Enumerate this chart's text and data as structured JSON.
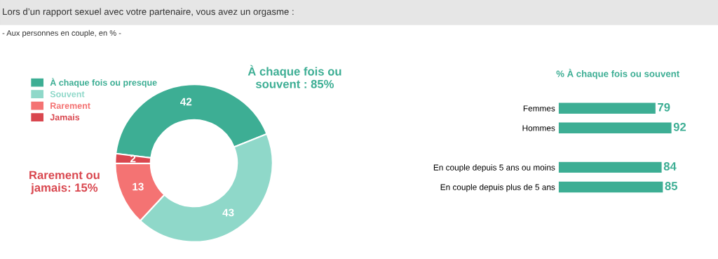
{
  "chart_data": [
    {
      "type": "donut",
      "title": "Lors d’un rapport sexuel avec votre partenaire, vous avez un orgasme :",
      "subtitle": "- Aux personnes en couple, en % -",
      "categories": [
        "À chaque fois ou presque",
        "Souvent",
        "Rarement",
        "Jamais"
      ],
      "values": [
        42,
        43,
        13,
        2
      ],
      "colors": [
        "#3dae94",
        "#8fd8c9",
        "#f47373",
        "#d9474f"
      ],
      "data_labels": true,
      "legend": "top left",
      "annotations": [
        "À chaque fois ou\nsouvent : 85%",
        "Rarement ou\njamais: 15%"
      ]
    },
    {
      "type": "bar",
      "orientation": "horizontal",
      "title": "% À chaque fois ou souvent",
      "categories": [
        "Femmes",
        "Hommes",
        null,
        "En couple depuis 5 ans ou moins",
        "En couple depuis plus de 5 ans"
      ],
      "values": [
        79,
        92,
        null,
        84,
        85
      ],
      "color": "#3dae94",
      "data_labels": true,
      "tick_labels": "y"
    }
  ]
}
